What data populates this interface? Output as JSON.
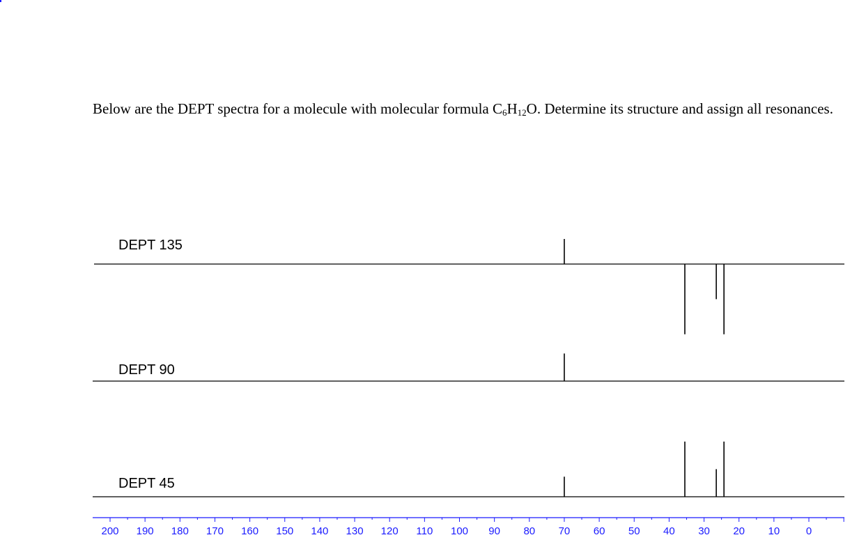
{
  "question": {
    "part1": "Below are the DEPT spectra for a molecule with molecular formula C",
    "sub1": "6",
    "part2": "H",
    "sub2": "12",
    "part3": "O.  Determine its structure and assign all resonances."
  },
  "chart_data": {
    "type": "line",
    "xlabel": "",
    "xlim": [
      200,
      0
    ],
    "x_axis_reversed": true,
    "tick_labels": [
      "200",
      "190",
      "180",
      "170",
      "160",
      "150",
      "140",
      "130",
      "120",
      "110",
      "100",
      "90",
      "80",
      "70",
      "60",
      "50",
      "40",
      "30",
      "20",
      "10",
      "0"
    ],
    "axis_color": "#1a1aff",
    "series": [
      {
        "name": "DEPT 135",
        "peaks": [
          {
            "x": 70,
            "y": 1
          },
          {
            "x": 35.5,
            "y": -2.8
          },
          {
            "x": 26.5,
            "y": -1.4
          },
          {
            "x": 24.3,
            "y": -2.8
          }
        ]
      },
      {
        "name": "DEPT 90",
        "peaks": [
          {
            "x": 70,
            "y": 1.1
          }
        ]
      },
      {
        "name": "DEPT 45",
        "peaks": [
          {
            "x": 70,
            "y": 0.8
          },
          {
            "x": 35.5,
            "y": 2.2
          },
          {
            "x": 26.5,
            "y": 1.1
          },
          {
            "x": 24.3,
            "y": 2.2
          }
        ]
      }
    ]
  }
}
